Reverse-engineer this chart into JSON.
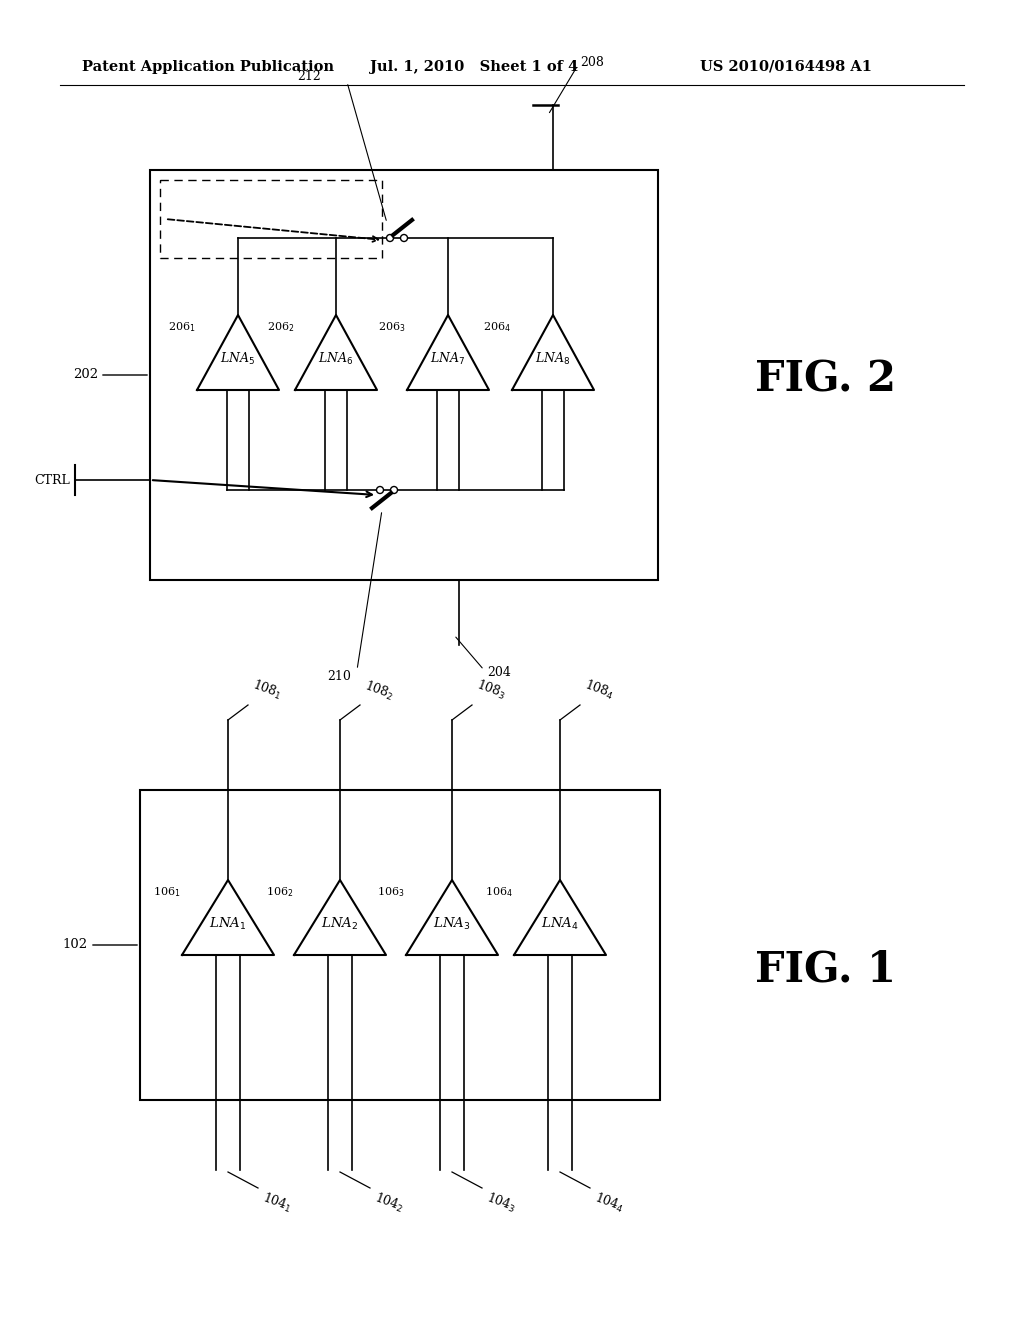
{
  "bg_color": "#ffffff",
  "header_left": "Patent Application Publication",
  "header_mid": "Jul. 1, 2010   Sheet 1 of 4",
  "header_right": "US 2010/0164498 A1",
  "fig1_label": "FIG. 1",
  "fig2_label": "FIG. 2",
  "line_color": "#000000"
}
